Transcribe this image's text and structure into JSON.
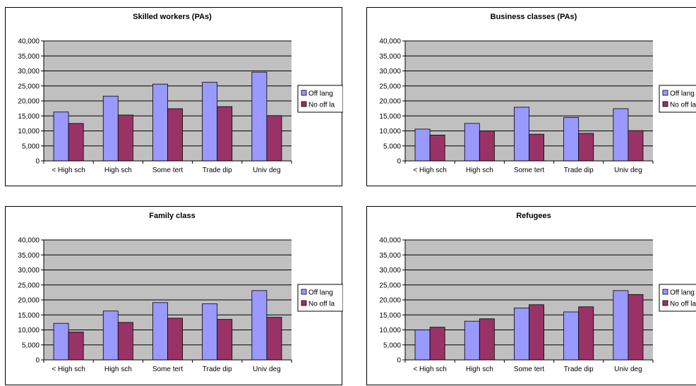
{
  "colors": {
    "off_lang": "#9999ff",
    "no_off_lang": "#993366",
    "plot_bg": "#c0c0c0",
    "gridline": "#000000"
  },
  "chart_data": [
    {
      "type": "bar",
      "title": "Skilled workers (PAs)",
      "categories": [
        "< High sch",
        "High sch",
        "Some tert",
        "Trade dip",
        "Univ deg"
      ],
      "series": [
        {
          "name": "Off lang",
          "values": [
            16300,
            21600,
            25600,
            26200,
            29600
          ]
        },
        {
          "name": "No off la",
          "values": [
            12500,
            15300,
            17400,
            18100,
            15100
          ]
        }
      ],
      "ylim": [
        0,
        40000
      ],
      "yticks": [
        "0",
        "5,000",
        "10,000",
        "15,000",
        "20,000",
        "25,000",
        "30,000",
        "35,000",
        "40,000"
      ],
      "grid": true,
      "legend": "right"
    },
    {
      "type": "bar",
      "title": "Business classes (PAs)",
      "categories": [
        "< High sch",
        "High sch",
        "Some tert",
        "Trade dip",
        "Univ deg"
      ],
      "series": [
        {
          "name": "Off lang",
          "values": [
            10600,
            12500,
            17900,
            14500,
            17400
          ]
        },
        {
          "name": "No off la",
          "values": [
            8600,
            10000,
            8900,
            9200,
            10100
          ]
        }
      ],
      "ylim": [
        0,
        40000
      ],
      "yticks": [
        "0",
        "5,000",
        "10,000",
        "15,000",
        "20,000",
        "25,000",
        "30,000",
        "35,000",
        "40,000"
      ],
      "grid": true,
      "legend": "right"
    },
    {
      "type": "bar",
      "title": "Family class",
      "categories": [
        "< High sch",
        "High sch",
        "Some tert",
        "Trade dip",
        "Univ deg"
      ],
      "series": [
        {
          "name": "Off lang",
          "values": [
            12200,
            16300,
            19100,
            18700,
            23100
          ]
        },
        {
          "name": "No off la",
          "values": [
            9300,
            12500,
            13900,
            13500,
            14200
          ]
        }
      ],
      "ylim": [
        0,
        40000
      ],
      "yticks": [
        "0",
        "5,000",
        "10,000",
        "15,000",
        "20,000",
        "25,000",
        "30,000",
        "35,000",
        "40,000"
      ],
      "grid": true,
      "legend": "right"
    },
    {
      "type": "bar",
      "title": "Refugees",
      "categories": [
        "< High sch",
        "High sch",
        "Some tert",
        "Trade dip",
        "Univ deg"
      ],
      "series": [
        {
          "name": "Off lang",
          "values": [
            10000,
            12900,
            17300,
            16000,
            23100
          ]
        },
        {
          "name": "No off la",
          "values": [
            10900,
            13700,
            18400,
            17700,
            21800
          ]
        }
      ],
      "ylim": [
        0,
        40000
      ],
      "yticks": [
        "0",
        "5,000",
        "10,000",
        "15,000",
        "20,000",
        "25,000",
        "30,000",
        "35,000",
        "40,000"
      ],
      "grid": true,
      "legend": "right"
    }
  ]
}
